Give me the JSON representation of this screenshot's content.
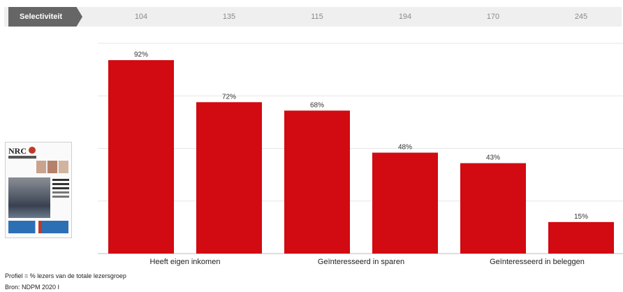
{
  "selectivity": {
    "label": "Selectiviteit",
    "values": [
      "104",
      "135",
      "115",
      "194",
      "170",
      "245"
    ]
  },
  "chart_data": {
    "type": "bar",
    "categories": [
      "Heeft eigen inkomen",
      "",
      "Geïnteresseerd in sparen",
      "",
      "Geïnteresseerd in beleggen",
      ""
    ],
    "values": [
      92,
      72,
      68,
      48,
      43,
      15
    ],
    "value_labels": [
      "92%",
      "72%",
      "68%",
      "48%",
      "43%",
      "15%"
    ],
    "ylim": [
      0,
      100
    ],
    "grid": true,
    "bar_color": "#d20a11"
  },
  "thumbnail": {
    "logo": "NRC",
    "icon": "newspaper-thumbnail"
  },
  "footnotes": {
    "profile": "Profiel = % lezers van de totale lezersgroep",
    "source": "Bron: NDPM 2020 I"
  }
}
